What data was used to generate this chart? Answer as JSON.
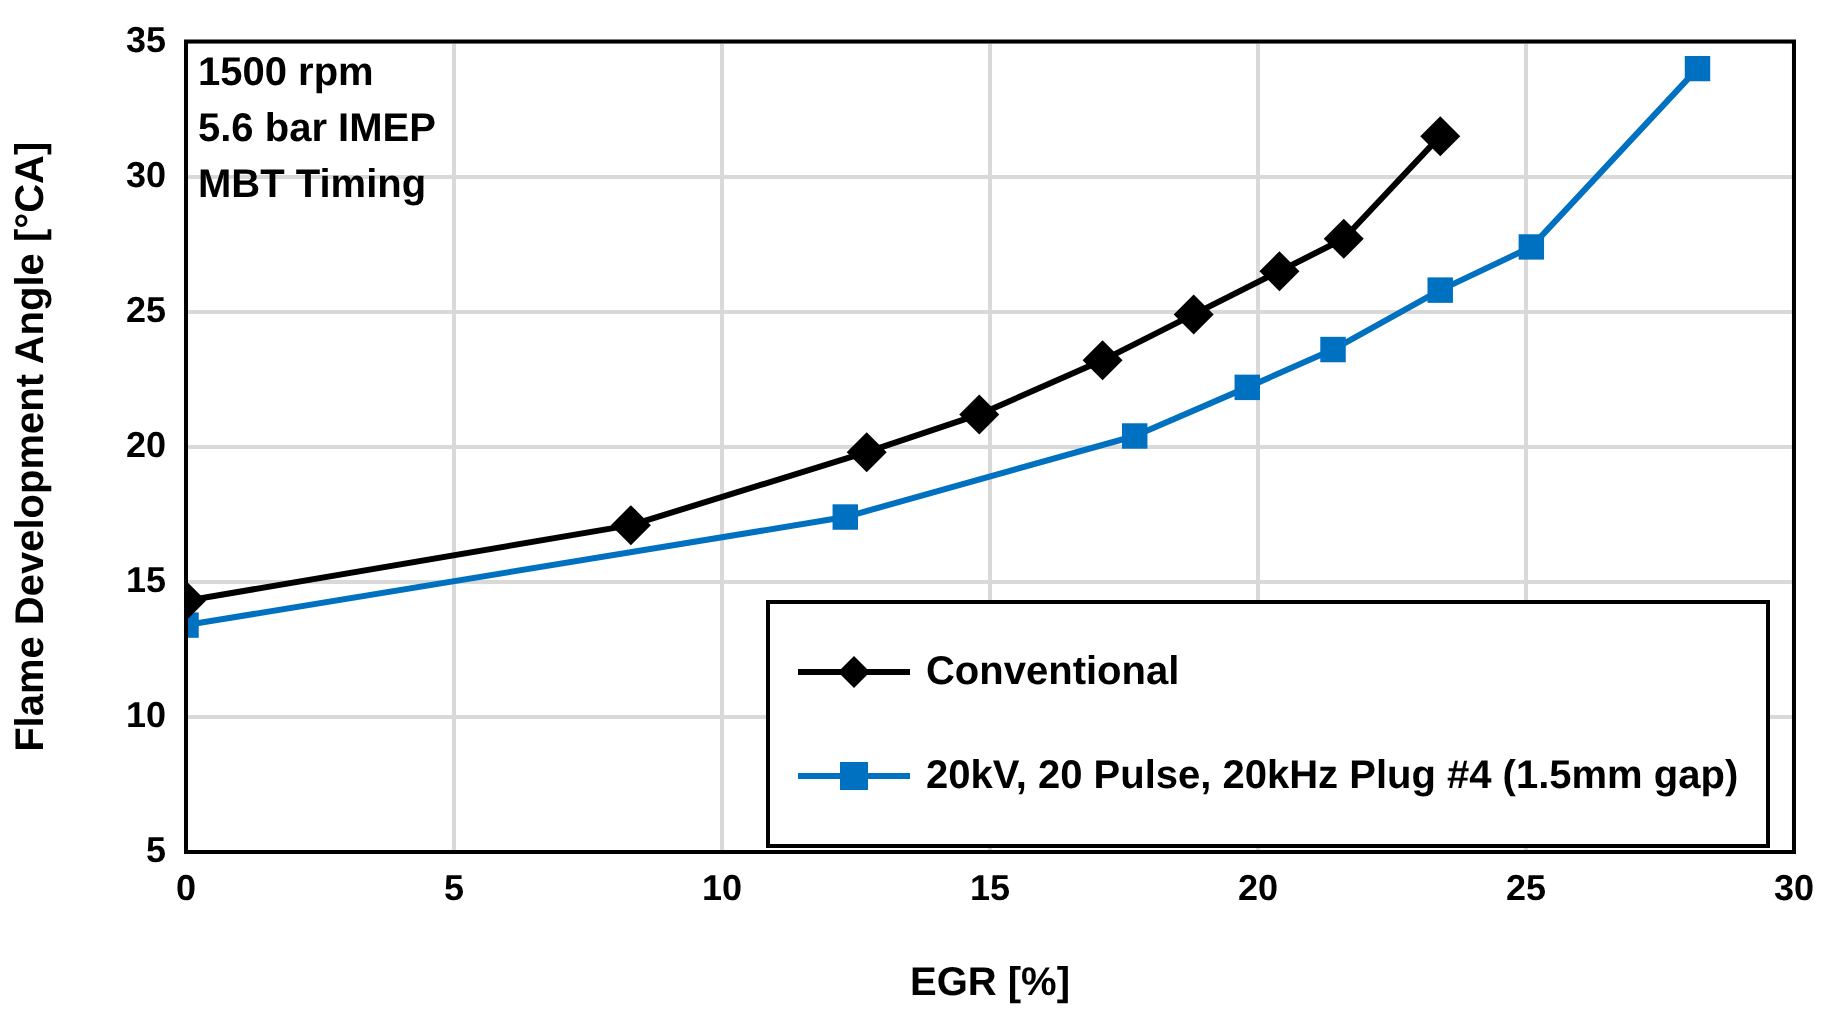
{
  "chart_data": {
    "type": "line",
    "xlabel": "EGR [%]",
    "ylabel": "Flame Development Angle [°CA]",
    "annotations": [
      "1500 rpm",
      "5.6 bar IMEP",
      "MBT Timing"
    ],
    "xlim": [
      0,
      30
    ],
    "xticks": [
      0,
      5,
      10,
      15,
      20,
      25,
      30
    ],
    "ylim": [
      5,
      35
    ],
    "yticks": [
      5,
      10,
      15,
      20,
      25,
      30,
      35
    ],
    "grid": true,
    "legend": "bottom right",
    "line_style": "solid",
    "series": [
      {
        "name": "Conventional",
        "color": "#000000",
        "marker": "diamond",
        "x": [
          0,
          8.3,
          12.7,
          14.8,
          17.1,
          18.8,
          20.4,
          21.6,
          23.4
        ],
        "values": [
          14.3,
          17.1,
          19.8,
          21.2,
          23.2,
          24.9,
          26.5,
          27.7,
          31.5
        ]
      },
      {
        "name": "20kV, 20 Pulse, 20kHz Plug #4 (1.5mm gap)",
        "color": "#0070c0",
        "marker": "square",
        "x": [
          0,
          12.3,
          17.7,
          19.8,
          21.4,
          23.4,
          25.1,
          28.2
        ],
        "values": [
          13.4,
          17.4,
          20.4,
          22.2,
          23.6,
          25.8,
          27.4,
          34.0
        ]
      }
    ]
  }
}
